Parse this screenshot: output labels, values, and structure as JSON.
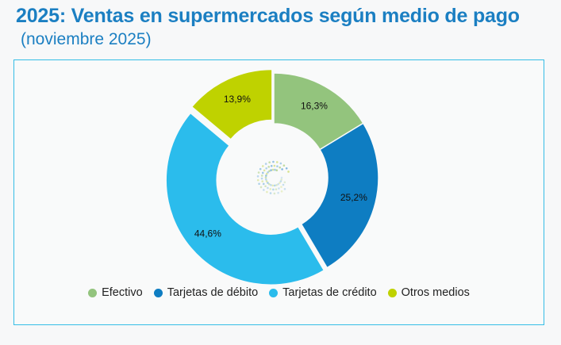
{
  "header": {
    "title": "2025: Ventas en supermercados según medio de pago",
    "subtitle": "(noviembre 2025)"
  },
  "chart_data": {
    "type": "pie",
    "variant": "donut",
    "categories": [
      "Efectivo",
      "Tarjetas de débito",
      "Tarjetas de crédito",
      "Otros medios"
    ],
    "values": [
      16.3,
      25.2,
      44.6,
      13.9
    ],
    "labels": [
      "16,3%",
      "25,2%",
      "44,6%",
      "13,9%"
    ],
    "colors": [
      "#93c47d",
      "#0e7dc2",
      "#2bbcec",
      "#bfd200"
    ],
    "legend_position": "bottom"
  }
}
